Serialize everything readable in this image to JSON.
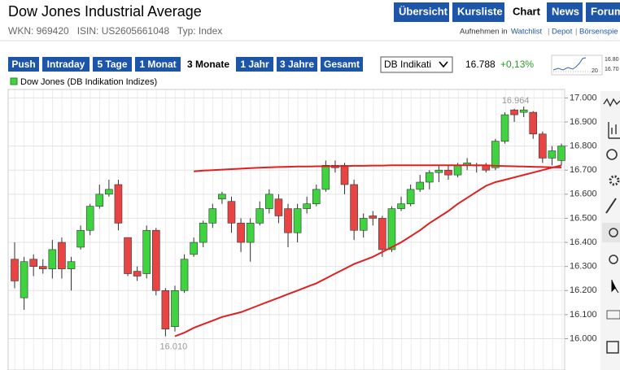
{
  "header": {
    "title": "Dow Jones Industrial Average",
    "tabs": [
      "Übersicht",
      "Kursliste",
      "Chart",
      "News",
      "Forum"
    ],
    "active_tab": 2
  },
  "info": "WKN: 969420   ISIN: US2605661048   Typ: Index",
  "links": {
    "prefix": "Aufnehmen in",
    "items": [
      "Watchlist",
      "Depot",
      "Börsenspie"
    ]
  },
  "periods": {
    "items": [
      "Push",
      "Intraday",
      "5 Tage",
      "1 Monat",
      "3 Monate",
      "1 Jahr",
      "3 Jahre",
      "Gesamt"
    ],
    "active": 4
  },
  "dropdown": "DB Indikati",
  "quote": {
    "price": "16.788",
    "change": "+0,13%"
  },
  "mini_chart": {
    "labels": [
      "16.80",
      "16.70",
      "20"
    ]
  },
  "chart_data": {
    "type": "candlestick",
    "series": [
      {
        "name": "Dow Jones (DB Indikation Indizes)",
        "up_color": "#3fd33f",
        "down_color": "#e84444",
        "open": [
          16330,
          16170,
          16330,
          16300,
          16290,
          16400,
          16290,
          16380,
          16450,
          16550,
          16600,
          16640,
          16420,
          16280,
          16270,
          16450,
          16200,
          16050,
          16200,
          16350,
          16400,
          16480,
          16580,
          16570,
          16480,
          16400,
          16480,
          16540,
          16580,
          16540,
          16440,
          16540,
          16560,
          16620,
          16720,
          16720,
          16640,
          16450,
          16510,
          16500,
          16370,
          16540,
          16560,
          16620,
          16650,
          16690,
          16700,
          16680,
          16720,
          16720,
          16720,
          16710,
          16820,
          16950,
          16940,
          16940,
          16850,
          16750,
          16740
        ],
        "high": [
          16400,
          16340,
          16350,
          16330,
          16410,
          16420,
          16340,
          16470,
          16560,
          16640,
          16660,
          16660,
          16420,
          16300,
          16470,
          16460,
          16210,
          16220,
          16350,
          16420,
          16490,
          16560,
          16610,
          16590,
          16500,
          16500,
          16570,
          16620,
          16600,
          16560,
          16560,
          16590,
          16640,
          16740,
          16740,
          16730,
          16660,
          16520,
          16530,
          16510,
          16550,
          16590,
          16640,
          16680,
          16700,
          16720,
          16720,
          16730,
          16750,
          16730,
          16730,
          16830,
          16940,
          16955,
          16964,
          16945,
          16860,
          16800,
          16810
        ],
        "low": [
          16210,
          16120,
          16260,
          16270,
          16250,
          16250,
          16200,
          16370,
          16430,
          16540,
          16590,
          16450,
          16260,
          16240,
          16250,
          16180,
          16010,
          16030,
          16190,
          16340,
          16380,
          16460,
          16560,
          16440,
          16360,
          16320,
          16470,
          16520,
          16480,
          16380,
          16400,
          16520,
          16550,
          16610,
          16690,
          16600,
          16410,
          16420,
          16470,
          16340,
          16360,
          16530,
          16550,
          16610,
          16620,
          16650,
          16660,
          16670,
          16700,
          16690,
          16690,
          16700,
          16810,
          16900,
          16920,
          16830,
          16730,
          16720,
          16720
        ],
        "close": [
          16240,
          16320,
          16300,
          16290,
          16370,
          16290,
          16320,
          16450,
          16550,
          16600,
          16620,
          16480,
          16270,
          16260,
          16450,
          16200,
          16040,
          16200,
          16330,
          16400,
          16480,
          16540,
          16600,
          16480,
          16400,
          16480,
          16540,
          16600,
          16510,
          16440,
          16540,
          16560,
          16620,
          16720,
          16710,
          16640,
          16450,
          16500,
          16500,
          16370,
          16540,
          16560,
          16620,
          16650,
          16690,
          16700,
          16680,
          16720,
          16730,
          16721,
          16700,
          16820,
          16930,
          16930,
          16950,
          16850,
          16750,
          16780,
          16800
        ]
      }
    ],
    "lines": [
      {
        "color": "#e02020",
        "values": [
          null,
          null,
          null,
          null,
          null,
          null,
          null,
          null,
          null,
          null,
          null,
          null,
          null,
          null,
          null,
          null,
          null,
          16010,
          16025,
          16045,
          16060,
          16075,
          16090,
          16100,
          16110,
          16125,
          16140,
          16155,
          16170,
          16185,
          16200,
          16215,
          16230,
          16250,
          16270,
          16290,
          16310,
          16325,
          16340,
          16360,
          16380,
          16400,
          16425,
          16450,
          16480,
          16505,
          16530,
          16560,
          16585,
          16610,
          16635,
          16650,
          16660,
          16670,
          16680,
          16690,
          16700,
          16710,
          16720
        ]
      },
      {
        "color": "#e02020",
        "values": [
          null,
          null,
          null,
          null,
          null,
          null,
          null,
          null,
          null,
          null,
          null,
          null,
          null,
          null,
          null,
          null,
          null,
          null,
          null,
          16695,
          16698,
          16700,
          16702,
          16704,
          16706,
          16708,
          16710,
          16712,
          16713,
          16714,
          16715,
          16715,
          16716,
          16716,
          16717,
          16717,
          16718,
          16718,
          16719,
          16719,
          16720,
          16720,
          16720,
          16720,
          16720,
          16720,
          16720,
          16720,
          16720,
          16720,
          16720,
          16718,
          16717,
          16716,
          16715,
          16714,
          16713,
          16712,
          16711
        ]
      }
    ],
    "max_label": "16.964",
    "min_label": "16.010",
    "ylim": [
      15870,
      17035
    ],
    "yticks": [
      {
        "value": 16000,
        "label": "16.000"
      },
      {
        "value": 16100,
        "label": "16.100"
      },
      {
        "value": 16200,
        "label": "16.200"
      },
      {
        "value": 16300,
        "label": "16.300"
      },
      {
        "value": 16400,
        "label": "16.400"
      },
      {
        "value": 16500,
        "label": "16.500"
      },
      {
        "value": 16600,
        "label": "16.600"
      },
      {
        "value": 16700,
        "label": "16.700"
      },
      {
        "value": 16800,
        "label": "16.800"
      },
      {
        "value": 16900,
        "label": "16.900"
      },
      {
        "value": 17000,
        "label": "17.000"
      }
    ],
    "grid": true
  }
}
